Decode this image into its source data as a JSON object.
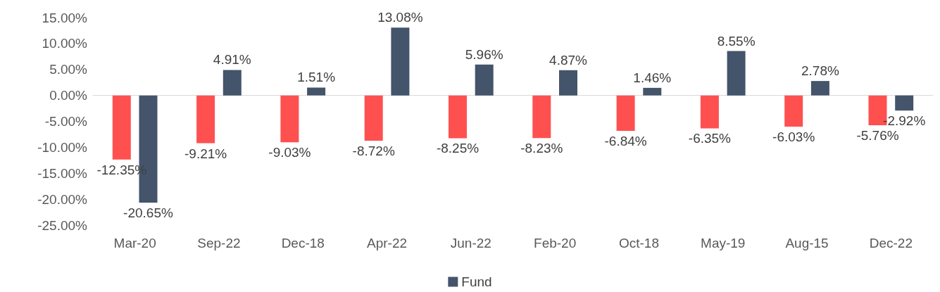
{
  "chart_data": {
    "type": "bar",
    "categories": [
      "Mar-20",
      "Sep-22",
      "Dec-18",
      "Apr-22",
      "Jun-22",
      "Feb-20",
      "Oct-18",
      "May-19",
      "Aug-15",
      "Dec-22"
    ],
    "series": [
      {
        "color": "#ff5050",
        "values": [
          -12.35,
          -9.21,
          -9.03,
          -8.72,
          -8.25,
          -8.23,
          -6.84,
          -6.35,
          -6.03,
          -5.76
        ],
        "value_labels": [
          "-12.35%",
          "-9.21%",
          "-9.03%",
          "-8.72%",
          "-8.25%",
          "-8.23%",
          "-6.84%",
          "-6.35%",
          "-6.03%",
          "-5.76%"
        ]
      },
      {
        "name": "Fund",
        "color": "#44546a",
        "values": [
          -20.65,
          4.91,
          1.51,
          13.08,
          5.96,
          4.87,
          1.46,
          8.55,
          2.78,
          -2.92
        ],
        "value_labels": [
          "-20.65%",
          "4.91%",
          "1.51%",
          "13.08%",
          "5.96%",
          "4.87%",
          "1.46%",
          "8.55%",
          "2.78%",
          "-2.92%"
        ]
      }
    ],
    "ylim": [
      -25,
      15
    ],
    "yticks": [
      {
        "value": -25,
        "label": "-25.00%"
      },
      {
        "value": -20,
        "label": "-20.00%"
      },
      {
        "value": -15,
        "label": "-15.00%"
      },
      {
        "value": -10,
        "label": "-10.00%"
      },
      {
        "value": -5,
        "label": "-5.00%"
      },
      {
        "value": 0,
        "label": "0.00%"
      },
      {
        "value": 5,
        "label": "5.00%"
      },
      {
        "value": 10,
        "label": "10.00%"
      },
      {
        "value": 15,
        "label": "15.00%"
      }
    ],
    "legend": "bottom"
  }
}
